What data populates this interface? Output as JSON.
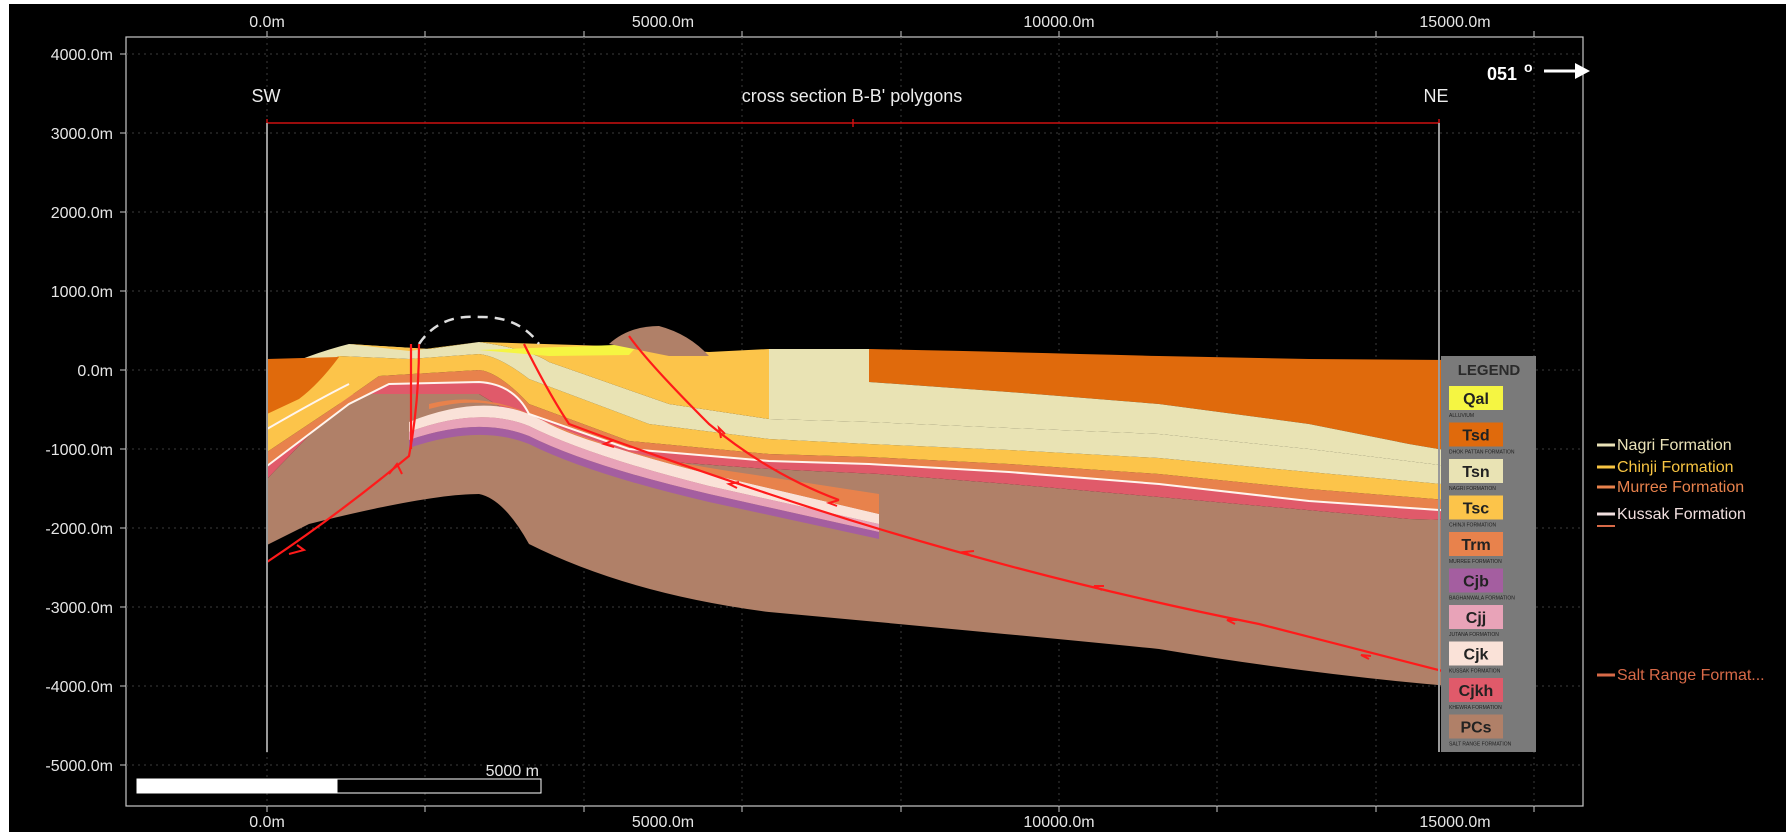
{
  "section": {
    "title": "cross section B-B' polygons",
    "sw_label": "SW",
    "ne_label": "NE",
    "azimuth": "051",
    "azimuth_unit": "o"
  },
  "axes": {
    "x_ticks_top": [
      "0.0m",
      "5000.0m",
      "10000.0m",
      "15000.0m"
    ],
    "x_ticks_bottom": [
      "0.0m",
      "5000.0m",
      "10000.0m",
      "15000.0m"
    ],
    "y_ticks": [
      "4000.0m",
      "3000.0m",
      "2000.0m",
      "1000.0m",
      "0.0m",
      "-1000.0m",
      "-2000.0m",
      "-3000.0m",
      "-4000.0m",
      "-5000.0m"
    ]
  },
  "scale_bar": {
    "label": "5000 m"
  },
  "legend": {
    "title": "LEGEND",
    "items": [
      {
        "code": "Qal",
        "name": "ALLUVIUM",
        "color": "#f5f542"
      },
      {
        "code": "Tsd",
        "name": "DHOK PATTAN FORMATION",
        "color": "#e06a0c"
      },
      {
        "code": "Tsn",
        "name": "NAGRI FORMATION",
        "color": "#e9e3b4"
      },
      {
        "code": "Tsc",
        "name": "CHINJI FORMATION",
        "color": "#fcc44a"
      },
      {
        "code": "Trm",
        "name": "MURREE FORMATION",
        "color": "#e8824c"
      },
      {
        "code": "Cjb",
        "name": "BAGHANWALA FORMATION",
        "color": "#a45ea0"
      },
      {
        "code": "Cjj",
        "name": "JUTANA FORMATION",
        "color": "#e8a3b8"
      },
      {
        "code": "Cjk",
        "name": "KUSSAK FORMATION",
        "color": "#fae2d8"
      },
      {
        "code": "Cjkh",
        "name": "KHEWRA FORMATION",
        "color": "#e05a6a"
      },
      {
        "code": "PCs",
        "name": "SALT RANGE FORMATION",
        "color": "#b08068"
      }
    ]
  },
  "well_labels": [
    {
      "name": "Nagri Formation",
      "color": "#eae2b8"
    },
    {
      "name": "Chinji Formation",
      "color": "#f7c442"
    },
    {
      "name": "Murree Formation",
      "color": "#e8824c"
    },
    {
      "name": "Kussak Formation",
      "color": "#f2e0e0"
    },
    {
      "name": "Salt Range Format...",
      "color": "#d86a48"
    }
  ],
  "colors": {
    "background": "#000000",
    "grid": "#3a3a3a",
    "frame": "#c8c8c8",
    "fault": "#ff1a1a",
    "section_line": "#cc1111",
    "legend_bg": "#7a7a7a",
    "alluvium": "#f5f542",
    "dhok_pattan": "#e06a0c",
    "nagri": "#e9e3b4",
    "chinji": "#fcc44a",
    "murree": "#e8824c",
    "baghanwala": "#a45ea0",
    "jutana": "#e8a3b8",
    "kussak": "#fae2d8",
    "khewra": "#e05a6a",
    "salt_range": "#b08068"
  }
}
